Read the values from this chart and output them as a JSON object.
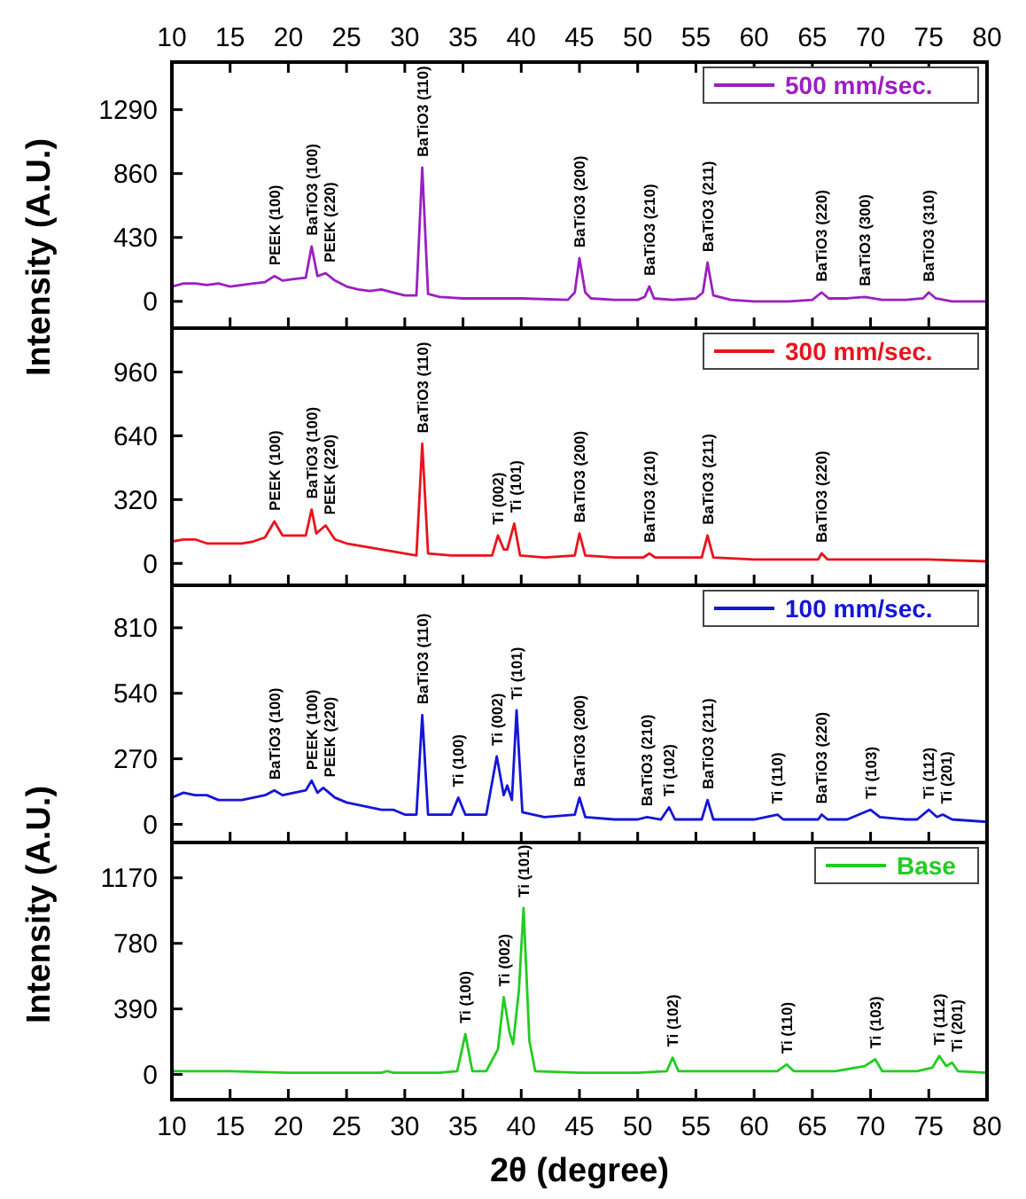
{
  "chart_data": [
    {
      "type": "line",
      "ylabel": "Intensity (A.U.)",
      "legend": "top right",
      "tick_labels": "y",
      "xlim": [
        10,
        80
      ],
      "xticks": [
        10,
        15,
        20,
        25,
        30,
        35,
        40,
        45,
        50,
        55,
        60,
        65,
        70,
        75,
        80
      ],
      "x2lim": [
        10,
        80
      ],
      "x2ticks": [
        10,
        15,
        20,
        25,
        30,
        35,
        40,
        45,
        50,
        55,
        60,
        65,
        70,
        75,
        80
      ],
      "ylim": [
        -180,
        1610
      ],
      "yticks": [
        0,
        430,
        860,
        1290
      ],
      "x": [
        10,
        11,
        12,
        13,
        14,
        15,
        16,
        17,
        18,
        18.8,
        19.5,
        20.5,
        21.5,
        22,
        22.5,
        23.2,
        24,
        25,
        26,
        27,
        28,
        29,
        30,
        31,
        31.5,
        32,
        33,
        35,
        38,
        40,
        44,
        44.6,
        45,
        45.5,
        46,
        48,
        50,
        50.6,
        51,
        51.4,
        53,
        55,
        55.6,
        56,
        56.5,
        58,
        60,
        63,
        65,
        65.8,
        66.4,
        68,
        69.5,
        71,
        73,
        74.5,
        75,
        75.6,
        77,
        79,
        80
      ],
      "series": [
        {
          "name": "500 mm/sec.",
          "color": "#9b1fc0",
          "values": [
            100,
            120,
            120,
            110,
            120,
            100,
            110,
            120,
            130,
            170,
            140,
            150,
            160,
            370,
            170,
            190,
            140,
            100,
            80,
            70,
            80,
            60,
            40,
            40,
            900,
            50,
            30,
            20,
            20,
            20,
            10,
            60,
            290,
            60,
            20,
            10,
            10,
            30,
            100,
            20,
            10,
            20,
            60,
            260,
            40,
            10,
            0,
            0,
            10,
            60,
            20,
            20,
            30,
            10,
            10,
            20,
            60,
            20,
            0,
            0,
            0
          ]
        }
      ],
      "annotations": [
        {
          "text": "PEEK (100)",
          "x": 18.8,
          "y": 170
        },
        {
          "text": "BaTiO3 (100)",
          "x": 22,
          "y": 370
        },
        {
          "text": "PEEK (220)",
          "x": 23.2,
          "y": 190
        },
        {
          "text": "BaTiO3 (110)",
          "x": 31.5,
          "y": 900
        },
        {
          "text": "BaTiO3 (200)",
          "x": 45,
          "y": 290
        },
        {
          "text": "BaTiO3 (210)",
          "x": 51,
          "y": 100
        },
        {
          "text": "BaTiO3 (211)",
          "x": 56,
          "y": 260
        },
        {
          "text": "BaTiO3 (220)",
          "x": 65.8,
          "y": 60
        },
        {
          "text": "BaTiO3 (300)",
          "x": 69.5,
          "y": 30
        },
        {
          "text": "BaTiO3 (310)",
          "x": 75,
          "y": 60
        }
      ]
    },
    {
      "type": "line",
      "legend": "top right",
      "tick_labels": "y",
      "xlim": [
        10,
        80
      ],
      "xticks": [
        10,
        15,
        20,
        25,
        30,
        35,
        40,
        45,
        50,
        55,
        60,
        65,
        70,
        75,
        80
      ],
      "ylim": [
        -110,
        1180
      ],
      "yticks": [
        0,
        320,
        640,
        960
      ],
      "x": [
        10,
        11,
        12,
        13,
        14,
        15,
        16,
        17,
        18,
        18.8,
        19.5,
        20.5,
        21.5,
        22,
        22.4,
        23.2,
        24,
        25,
        26,
        27,
        28,
        29,
        30,
        31,
        31.5,
        32,
        34,
        36,
        37.5,
        38,
        38.5,
        38.8,
        39.4,
        39.9,
        42,
        44.6,
        45,
        45.5,
        48,
        50.5,
        51,
        51.5,
        55.5,
        56,
        56.5,
        60,
        65.5,
        65.8,
        66.3,
        70,
        75,
        80
      ],
      "series": [
        {
          "name": "300 mm/sec.",
          "color": "#e8141c",
          "values": [
            110,
            120,
            120,
            100,
            100,
            100,
            100,
            110,
            130,
            210,
            140,
            140,
            140,
            270,
            150,
            190,
            120,
            100,
            90,
            80,
            70,
            60,
            50,
            40,
            600,
            50,
            40,
            40,
            40,
            140,
            70,
            70,
            200,
            40,
            30,
            40,
            150,
            40,
            30,
            30,
            50,
            30,
            30,
            140,
            30,
            20,
            20,
            50,
            20,
            20,
            20,
            10
          ]
        }
      ],
      "annotations": [
        {
          "text": "PEEK (100)",
          "x": 18.8,
          "y": 210
        },
        {
          "text": "BaTiO3 (100)",
          "x": 22,
          "y": 270
        },
        {
          "text": "PEEK (220)",
          "x": 23.2,
          "y": 190
        },
        {
          "text": "BaTiO3 (110)",
          "x": 31.5,
          "y": 600
        },
        {
          "text": "Ti (002)",
          "x": 38,
          "y": 140
        },
        {
          "text": "Ti (101)",
          "x": 39.4,
          "y": 200
        },
        {
          "text": "BaTiO3 (200)",
          "x": 45,
          "y": 150
        },
        {
          "text": "BaTiO3 (210)",
          "x": 51,
          "y": 50
        },
        {
          "text": "BaTiO3 (211)",
          "x": 56,
          "y": 140
        },
        {
          "text": "BaTiO3 (220)",
          "x": 65.8,
          "y": 50
        }
      ]
    },
    {
      "type": "line",
      "ylabel": "Intensity (A.U.)",
      "legend": "top right",
      "tick_labels": "y",
      "xlim": [
        10,
        80
      ],
      "xticks": [
        10,
        15,
        20,
        25,
        30,
        35,
        40,
        45,
        50,
        55,
        60,
        65,
        70,
        75,
        80
      ],
      "ylim": [
        -75,
        985
      ],
      "yticks": [
        0,
        270,
        540,
        810
      ],
      "x": [
        10,
        11,
        12,
        13,
        14,
        15,
        16,
        17,
        18,
        18.8,
        19.5,
        20.5,
        21.5,
        22,
        22.5,
        23,
        24,
        25,
        26,
        27,
        28,
        29,
        30,
        31,
        31.5,
        32,
        34,
        34.6,
        35.2,
        37,
        37.9,
        38.5,
        38.8,
        39.2,
        39.6,
        40.1,
        42,
        44.6,
        45,
        45.5,
        48,
        50,
        50.8,
        52,
        52.7,
        53.2,
        55.5,
        56,
        56.5,
        60,
        62,
        62.5,
        65.5,
        65.8,
        66.3,
        68,
        69.5,
        70,
        70.8,
        73,
        74,
        75,
        75.7,
        76.2,
        77,
        80
      ],
      "series": [
        {
          "name": "100 mm/sec.",
          "color": "#1515d8",
          "values": [
            110,
            130,
            120,
            120,
            100,
            100,
            100,
            110,
            120,
            140,
            120,
            130,
            140,
            180,
            130,
            150,
            110,
            90,
            80,
            70,
            60,
            60,
            40,
            40,
            450,
            40,
            40,
            110,
            40,
            40,
            280,
            120,
            160,
            100,
            470,
            50,
            30,
            40,
            110,
            30,
            20,
            20,
            30,
            20,
            70,
            20,
            20,
            100,
            20,
            20,
            40,
            20,
            20,
            40,
            20,
            20,
            50,
            60,
            30,
            20,
            20,
            60,
            30,
            40,
            20,
            10
          ]
        }
      ],
      "annotations": [
        {
          "text": "BaTiO3 (100)",
          "x": 18.8,
          "y": 140
        },
        {
          "text": "PEEK (100)",
          "x": 22,
          "y": 180
        },
        {
          "text": "PEEK (220)",
          "x": 23,
          "y": 150
        },
        {
          "text": "BaTiO3 (110)",
          "x": 31.5,
          "y": 450
        },
        {
          "text": "Ti (100)",
          "x": 34.6,
          "y": 110
        },
        {
          "text": "Ti (002)",
          "x": 37.9,
          "y": 280
        },
        {
          "text": "Ti (101)",
          "x": 39.6,
          "y": 470
        },
        {
          "text": "BaTiO3 (200)",
          "x": 45,
          "y": 110
        },
        {
          "text": "BaTiO3 (210)",
          "x": 50.8,
          "y": 30
        },
        {
          "text": "Ti (102)",
          "x": 52.7,
          "y": 70
        },
        {
          "text": "BaTiO3 (211)",
          "x": 56,
          "y": 100
        },
        {
          "text": "Ti (110)",
          "x": 62,
          "y": 40
        },
        {
          "text": "BaTiO3 (220)",
          "x": 65.8,
          "y": 40
        },
        {
          "text": "Ti (103)",
          "x": 70,
          "y": 60
        },
        {
          "text": "Ti (112)",
          "x": 75,
          "y": 60
        },
        {
          "text": "Ti (201)",
          "x": 76.2,
          "y": 40
        }
      ]
    },
    {
      "type": "line",
      "xlabel": "2θ (degree)",
      "legend": "top right",
      "xlim": [
        10,
        80
      ],
      "xticks": [
        10,
        15,
        20,
        25,
        30,
        35,
        40,
        45,
        50,
        55,
        60,
        65,
        70,
        75,
        80
      ],
      "ylim": [
        -150,
        1380
      ],
      "yticks": [
        0,
        390,
        780,
        1170
      ],
      "x": [
        10,
        15,
        20,
        25,
        28,
        28.5,
        29,
        33,
        34.5,
        35.2,
        35.8,
        37,
        38,
        38.5,
        39,
        39.3,
        39.8,
        40.2,
        40.7,
        41.2,
        45,
        50,
        52.5,
        53,
        53.5,
        60,
        62,
        62.8,
        63.4,
        67,
        69.5,
        70.4,
        71,
        74,
        75.3,
        75.9,
        76.5,
        77,
        77.5,
        80
      ],
      "series": [
        {
          "name": "Base",
          "color": "#22cc22",
          "values": [
            20,
            20,
            10,
            10,
            10,
            20,
            10,
            10,
            20,
            240,
            20,
            20,
            150,
            460,
            250,
            180,
            500,
            990,
            200,
            20,
            10,
            10,
            20,
            100,
            20,
            20,
            20,
            60,
            20,
            20,
            50,
            90,
            20,
            20,
            40,
            110,
            50,
            70,
            20,
            10
          ]
        }
      ],
      "annotations": [
        {
          "text": "Ti (100)",
          "x": 35.2,
          "y": 240
        },
        {
          "text": "Ti (002)",
          "x": 38.5,
          "y": 460
        },
        {
          "text": "Ti (101)",
          "x": 40.2,
          "y": 990
        },
        {
          "text": "Ti (102)",
          "x": 53,
          "y": 100
        },
        {
          "text": "Ti (110)",
          "x": 62.8,
          "y": 60
        },
        {
          "text": "Ti (103)",
          "x": 70.4,
          "y": 90
        },
        {
          "text": "Ti (112)",
          "x": 75.9,
          "y": 110
        },
        {
          "text": "Ti (201)",
          "x": 77,
          "y": 70
        }
      ]
    }
  ]
}
